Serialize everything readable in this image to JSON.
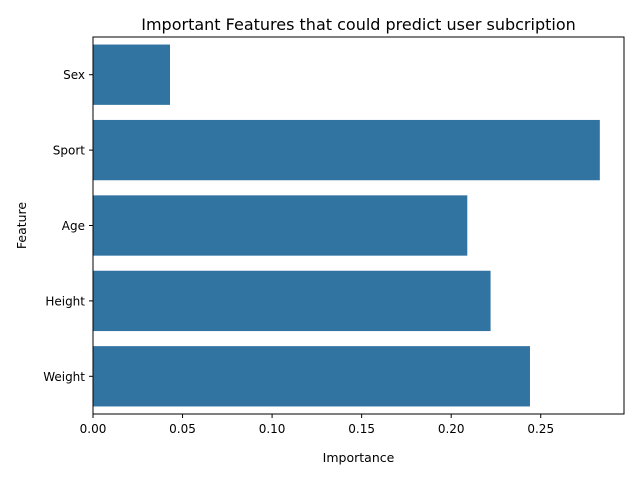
{
  "chart_data": {
    "type": "bar",
    "orientation": "horizontal",
    "title": "Important Features that could predict user subcription",
    "xlabel": "Importance",
    "ylabel": "Feature",
    "categories": [
      "Sex",
      "Sport",
      "Age",
      "Height",
      "Weight"
    ],
    "values": [
      0.043,
      0.283,
      0.209,
      0.222,
      0.244
    ],
    "xlim": [
      0.0,
      0.2965
    ],
    "xticks": [
      0.0,
      0.05,
      0.1,
      0.15,
      0.2,
      0.25
    ],
    "xtick_labels": [
      "0.00",
      "0.05",
      "0.10",
      "0.15",
      "0.20",
      "0.25"
    ],
    "grid": false,
    "bar_color": "#3274a1"
  }
}
